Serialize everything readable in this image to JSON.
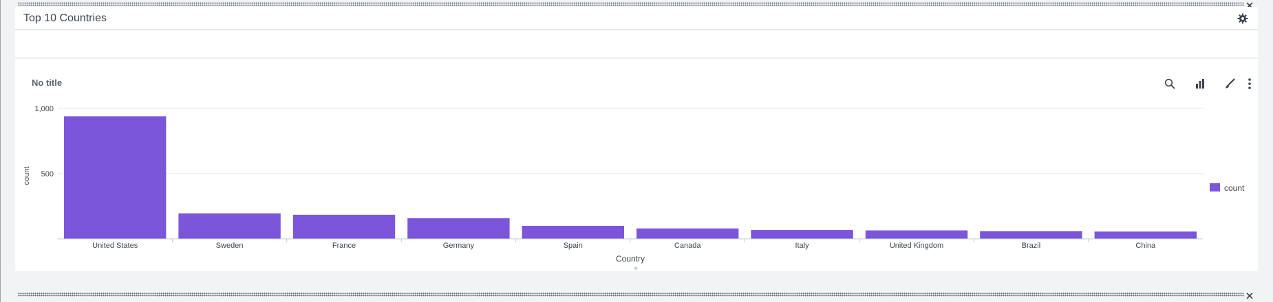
{
  "panel": {
    "title": "Top 10 Countries"
  },
  "viz": {
    "title": "No title",
    "tools": {
      "search_icon": "search-icon",
      "chart_icon": "bar-chart-icon",
      "format_icon": "paintbrush-icon",
      "more_icon": "more-vertical-icon"
    }
  },
  "colors": {
    "bar": "#7b56db",
    "grid": "#e3e6e9",
    "axis": "#c3cbd4",
    "text": "#3c444d"
  },
  "chart_data": {
    "type": "bar",
    "categories": [
      "United States",
      "Sweden",
      "France",
      "Germany",
      "Spain",
      "Canada",
      "Italy",
      "United Kingdom",
      "Brazil",
      "China"
    ],
    "series": [
      {
        "name": "count",
        "values": [
          940,
          195,
          185,
          158,
          100,
          80,
          68,
          65,
          58,
          56
        ]
      }
    ],
    "xlabel": "Country",
    "ylabel": "count",
    "ylim": [
      0,
      1000
    ],
    "yticks": [
      {
        "value": 1000,
        "label": "1,000"
      },
      {
        "value": 500,
        "label": "500"
      }
    ],
    "grid": true,
    "legend": "right"
  }
}
